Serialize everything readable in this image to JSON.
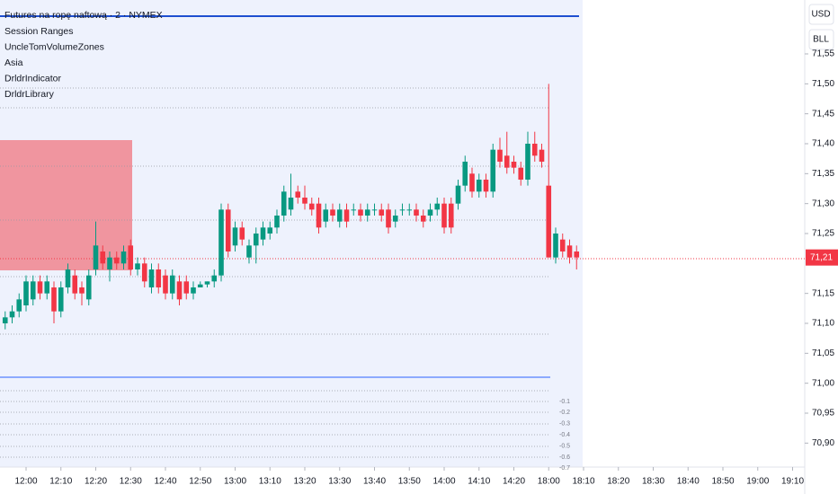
{
  "chart_data": {
    "type": "candlestick",
    "title": "Futures na ropę naftową · 2 · NYMEX",
    "indicators": [
      "Session Ranges",
      "UncleTomVolumeZones",
      "Asia",
      "DrldrIndicator",
      "DrldrLibrary"
    ],
    "buttons": [
      "USD",
      "BLL"
    ],
    "up_color": "#089981",
    "down_color": "#f23645",
    "ylim": [
      70.86,
      71.64
    ],
    "yticks": [
      {
        "value": 71.55,
        "label": "71,55"
      },
      {
        "value": 71.5,
        "label": "71,50"
      },
      {
        "value": 71.45,
        "label": "71,45"
      },
      {
        "value": 71.4,
        "label": "71,40"
      },
      {
        "value": 71.35,
        "label": "71,35"
      },
      {
        "value": 71.3,
        "label": "71,30"
      },
      {
        "value": 71.25,
        "label": "71,25"
      },
      {
        "value": 71.15,
        "label": "71,15"
      },
      {
        "value": 71.1,
        "label": "71,10"
      },
      {
        "value": 71.05,
        "label": "71,05"
      },
      {
        "value": 71,
        "label": "71,00"
      },
      {
        "value": 70.95,
        "label": "70,95"
      },
      {
        "value": 70.9,
        "label": "70,90"
      }
    ],
    "last_price": {
      "value": 71.21,
      "label": "71,21"
    },
    "oscillator_labels": [
      "-0.1",
      "-0.2",
      "-0.3",
      "-0.4",
      "-0.5",
      "-0.6",
      "-0.7"
    ],
    "xticks": [
      "12:00",
      "12:10",
      "12:20",
      "12:30",
      "12:40",
      "12:50",
      "13:00",
      "13:10",
      "13:20",
      "13:30",
      "13:40",
      "13:50",
      "14:00",
      "14:10",
      "14:20",
      "18:00",
      "18:10",
      "18:20",
      "18:30",
      "18:40",
      "18:50",
      "19:00",
      "19:10"
    ],
    "candles": [
      {
        "x": "11:54",
        "open": 71.1,
        "high": 71.12,
        "low": 71.09,
        "close": 71.11
      },
      {
        "x": "11:56",
        "open": 71.11,
        "high": 71.13,
        "low": 71.1,
        "close": 71.12
      },
      {
        "x": "11:58",
        "open": 71.12,
        "high": 71.15,
        "low": 71.11,
        "close": 71.14
      },
      {
        "x": "12:00",
        "open": 71.13,
        "high": 71.18,
        "low": 71.12,
        "close": 71.17
      },
      {
        "x": "12:02",
        "open": 71.14,
        "high": 71.18,
        "low": 71.13,
        "close": 71.17
      },
      {
        "x": "12:04",
        "open": 71.17,
        "high": 71.18,
        "low": 71.14,
        "close": 71.15
      },
      {
        "x": "12:06",
        "open": 71.15,
        "high": 71.18,
        "low": 71.14,
        "close": 71.17
      },
      {
        "x": "12:08",
        "open": 71.16,
        "high": 71.17,
        "low": 71.1,
        "close": 71.12
      },
      {
        "x": "12:10",
        "open": 71.12,
        "high": 71.17,
        "low": 71.11,
        "close": 71.16
      },
      {
        "x": "12:12",
        "open": 71.16,
        "high": 71.2,
        "low": 71.15,
        "close": 71.19
      },
      {
        "x": "12:14",
        "open": 71.18,
        "high": 71.19,
        "low": 71.14,
        "close": 71.15
      },
      {
        "x": "12:16",
        "open": 71.16,
        "high": 71.17,
        "low": 71.13,
        "close": 71.15
      },
      {
        "x": "12:18",
        "open": 71.14,
        "high": 71.19,
        "low": 71.13,
        "close": 71.18
      },
      {
        "x": "12:20",
        "open": 71.19,
        "high": 71.27,
        "low": 71.18,
        "close": 71.23
      },
      {
        "x": "12:22",
        "open": 71.22,
        "high": 71.23,
        "low": 71.19,
        "close": 71.2
      },
      {
        "x": "12:24",
        "open": 71.19,
        "high": 71.22,
        "low": 71.17,
        "close": 71.21
      },
      {
        "x": "12:26",
        "open": 71.21,
        "high": 71.22,
        "low": 71.19,
        "close": 71.2
      },
      {
        "x": "12:28",
        "open": 71.2,
        "high": 71.23,
        "low": 71.19,
        "close": 71.22
      },
      {
        "x": "12:30",
        "open": 71.23,
        "high": 71.24,
        "low": 71.18,
        "close": 71.19
      },
      {
        "x": "12:32",
        "open": 71.19,
        "high": 71.21,
        "low": 71.18,
        "close": 71.2
      },
      {
        "x": "12:34",
        "open": 71.2,
        "high": 71.21,
        "low": 71.16,
        "close": 71.17
      },
      {
        "x": "12:36",
        "open": 71.16,
        "high": 71.2,
        "low": 71.15,
        "close": 71.19
      },
      {
        "x": "12:38",
        "open": 71.19,
        "high": 71.2,
        "low": 71.15,
        "close": 71.16
      },
      {
        "x": "12:40",
        "open": 71.18,
        "high": 71.19,
        "low": 71.14,
        "close": 71.15
      },
      {
        "x": "12:42",
        "open": 71.15,
        "high": 71.19,
        "low": 71.14,
        "close": 71.18
      },
      {
        "x": "12:44",
        "open": 71.17,
        "high": 71.18,
        "low": 71.13,
        "close": 71.14
      },
      {
        "x": "12:46",
        "open": 71.17,
        "high": 71.18,
        "low": 71.14,
        "close": 71.15
      },
      {
        "x": "12:48",
        "open": 71.15,
        "high": 71.17,
        "low": 71.14,
        "close": 71.16
      },
      {
        "x": "12:50",
        "open": 71.16,
        "high": 71.17,
        "low": 71.16,
        "close": 71.165
      },
      {
        "x": "12:52",
        "open": 71.165,
        "high": 71.17,
        "low": 71.16,
        "close": 71.17
      },
      {
        "x": "12:54",
        "open": 71.17,
        "high": 71.19,
        "low": 71.16,
        "close": 71.18
      },
      {
        "x": "12:56",
        "open": 71.18,
        "high": 71.3,
        "low": 71.17,
        "close": 71.29
      },
      {
        "x": "12:58",
        "open": 71.29,
        "high": 71.3,
        "low": 71.21,
        "close": 71.22
      },
      {
        "x": "13:00",
        "open": 71.23,
        "high": 71.27,
        "low": 71.22,
        "close": 71.26
      },
      {
        "x": "13:02",
        "open": 71.26,
        "high": 71.27,
        "low": 71.23,
        "close": 71.24
      },
      {
        "x": "13:04",
        "open": 71.21,
        "high": 71.24,
        "low": 71.2,
        "close": 71.23
      },
      {
        "x": "13:06",
        "open": 71.23,
        "high": 71.26,
        "low": 71.2,
        "close": 71.25
      },
      {
        "x": "13:08",
        "open": 71.24,
        "high": 71.27,
        "low": 71.23,
        "close": 71.26
      },
      {
        "x": "13:10",
        "open": 71.25,
        "high": 71.27,
        "low": 71.24,
        "close": 71.26
      },
      {
        "x": "13:12",
        "open": 71.26,
        "high": 71.29,
        "low": 71.25,
        "close": 71.28
      },
      {
        "x": "13:14",
        "open": 71.28,
        "high": 71.33,
        "low": 71.27,
        "close": 71.32
      },
      {
        "x": "13:16",
        "open": 71.29,
        "high": 71.35,
        "low": 71.28,
        "close": 71.31
      },
      {
        "x": "13:18",
        "open": 71.32,
        "high": 71.33,
        "low": 71.3,
        "close": 71.31
      },
      {
        "x": "13:20",
        "open": 71.31,
        "high": 71.33,
        "low": 71.29,
        "close": 71.3
      },
      {
        "x": "13:22",
        "open": 71.3,
        "high": 71.31,
        "low": 71.28,
        "close": 71.29
      },
      {
        "x": "13:24",
        "open": 71.3,
        "high": 71.31,
        "low": 71.25,
        "close": 71.26
      },
      {
        "x": "13:26",
        "open": 71.27,
        "high": 71.3,
        "low": 71.26,
        "close": 71.29
      },
      {
        "x": "13:28",
        "open": 71.29,
        "high": 71.3,
        "low": 71.27,
        "close": 71.28
      },
      {
        "x": "13:30",
        "open": 71.27,
        "high": 71.3,
        "low": 71.26,
        "close": 71.29
      },
      {
        "x": "13:32",
        "open": 71.29,
        "high": 71.3,
        "low": 71.26,
        "close": 71.27
      },
      {
        "x": "13:34",
        "open": 71.29,
        "high": 71.3,
        "low": 71.28,
        "close": 71.29
      },
      {
        "x": "13:36",
        "open": 71.29,
        "high": 71.3,
        "low": 71.27,
        "close": 71.28
      },
      {
        "x": "13:38",
        "open": 71.28,
        "high": 71.3,
        "low": 71.27,
        "close": 71.29
      },
      {
        "x": "13:40",
        "open": 71.29,
        "high": 71.3,
        "low": 71.28,
        "close": 71.29
      },
      {
        "x": "13:42",
        "open": 71.29,
        "high": 71.3,
        "low": 71.27,
        "close": 71.28
      },
      {
        "x": "13:44",
        "open": 71.29,
        "high": 71.3,
        "low": 71.25,
        "close": 71.26
      },
      {
        "x": "13:46",
        "open": 71.27,
        "high": 71.29,
        "low": 71.26,
        "close": 71.28
      },
      {
        "x": "13:48",
        "open": 71.29,
        "high": 71.3,
        "low": 71.28,
        "close": 71.29
      },
      {
        "x": "13:50",
        "open": 71.29,
        "high": 71.3,
        "low": 71.28,
        "close": 71.29
      },
      {
        "x": "13:52",
        "open": 71.29,
        "high": 71.3,
        "low": 71.27,
        "close": 71.28
      },
      {
        "x": "13:54",
        "open": 71.28,
        "high": 71.29,
        "low": 71.26,
        "close": 71.27
      },
      {
        "x": "13:56",
        "open": 71.28,
        "high": 71.3,
        "low": 71.27,
        "close": 71.29
      },
      {
        "x": "13:58",
        "open": 71.29,
        "high": 71.31,
        "low": 71.28,
        "close": 71.3
      },
      {
        "x": "14:00",
        "open": 71.3,
        "high": 71.31,
        "low": 71.25,
        "close": 71.26
      },
      {
        "x": "14:02",
        "open": 71.3,
        "high": 71.31,
        "low": 71.25,
        "close": 71.26
      },
      {
        "x": "14:04",
        "open": 71.3,
        "high": 71.34,
        "low": 71.29,
        "close": 71.33
      },
      {
        "x": "14:06",
        "open": 71.33,
        "high": 71.38,
        "low": 71.32,
        "close": 71.37
      },
      {
        "x": "14:08",
        "open": 71.35,
        "high": 71.36,
        "low": 71.31,
        "close": 71.32
      },
      {
        "x": "14:10",
        "open": 71.32,
        "high": 71.35,
        "low": 71.31,
        "close": 71.34
      },
      {
        "x": "14:12",
        "open": 71.34,
        "high": 71.35,
        "low": 71.31,
        "close": 71.32
      },
      {
        "x": "14:14",
        "open": 71.32,
        "high": 71.4,
        "low": 71.31,
        "close": 71.39
      },
      {
        "x": "14:16",
        "open": 71.39,
        "high": 71.41,
        "low": 71.36,
        "close": 71.37
      },
      {
        "x": "14:18",
        "open": 71.38,
        "high": 71.42,
        "low": 71.35,
        "close": 71.36
      },
      {
        "x": "14:20",
        "open": 71.37,
        "high": 71.38,
        "low": 71.35,
        "close": 71.36
      },
      {
        "x": "14:22",
        "open": 71.36,
        "high": 71.37,
        "low": 71.33,
        "close": 71.34
      },
      {
        "x": "14:24",
        "open": 71.34,
        "high": 71.42,
        "low": 71.33,
        "close": 71.4
      },
      {
        "x": "14:26",
        "open": 71.4,
        "high": 71.42,
        "low": 71.37,
        "close": 71.38
      },
      {
        "x": "14:28",
        "open": 71.39,
        "high": 71.4,
        "low": 71.36,
        "close": 71.37
      },
      {
        "x": "18:00",
        "open": 71.33,
        "high": 71.5,
        "low": 71.21,
        "close": 71.21
      },
      {
        "x": "18:02",
        "open": 71.21,
        "high": 71.26,
        "low": 71.2,
        "close": 71.25
      },
      {
        "x": "18:04",
        "open": 71.24,
        "high": 71.25,
        "low": 71.21,
        "close": 71.22
      },
      {
        "x": "18:06",
        "open": 71.23,
        "high": 71.24,
        "low": 71.2,
        "close": 71.21
      },
      {
        "x": "18:08",
        "open": 71.22,
        "high": 71.23,
        "low": 71.19,
        "close": 71.21
      }
    ]
  }
}
